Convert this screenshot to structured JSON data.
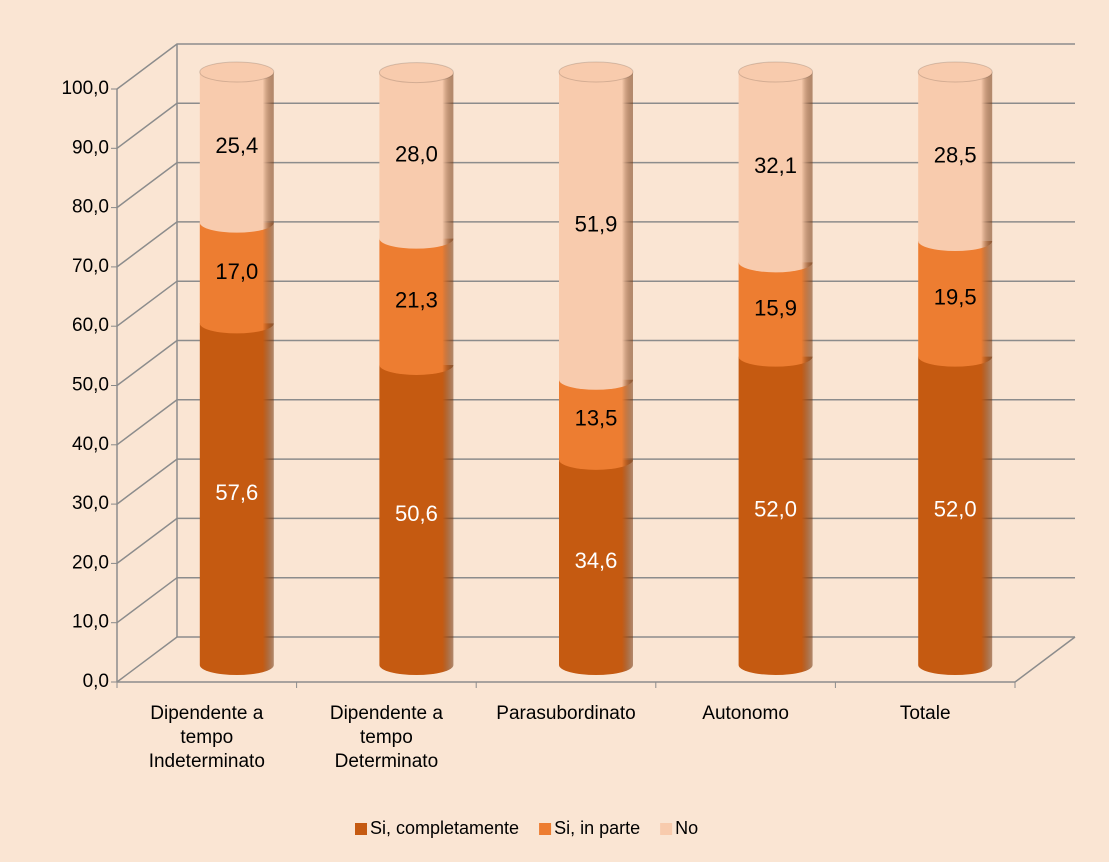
{
  "chart_data": {
    "type": "cylinder_stacked",
    "categories": [
      "Dipendente a tempo Indeterminato",
      "Dipendente a tempo Determinato",
      "Parasubordinato",
      "Autonomo",
      "Totale"
    ],
    "series": [
      {
        "name": "Si, completamente",
        "color": "#c55a11",
        "label_color": "#ffffff",
        "values": [
          57.6,
          50.6,
          34.6,
          52.0,
          52.0
        ],
        "value_labels": [
          "57,6",
          "50,6",
          "34,6",
          "52,0",
          "52,0"
        ]
      },
      {
        "name": "Si, in parte",
        "color": "#ed7d31",
        "label_color": "#000000",
        "values": [
          17.0,
          21.3,
          13.5,
          15.9,
          19.5
        ],
        "value_labels": [
          "17,0",
          "21,3",
          "13,5",
          "15,9",
          "19,5"
        ]
      },
      {
        "name": "No",
        "color": "#f8cbad",
        "label_color": "#000000",
        "values": [
          25.4,
          28.0,
          51.9,
          32.1,
          28.5
        ],
        "value_labels": [
          "25,4",
          "28,0",
          "51,9",
          "32,1",
          "28,5"
        ]
      }
    ],
    "ylim": [
      0,
      100
    ],
    "yticks": [
      {
        "value": 0,
        "label": "0,0"
      },
      {
        "value": 10,
        "label": "10,0"
      },
      {
        "value": 20,
        "label": "20,0"
      },
      {
        "value": 30,
        "label": "30,0"
      },
      {
        "value": 40,
        "label": "40,0"
      },
      {
        "value": 50,
        "label": "50,0"
      },
      {
        "value": 60,
        "label": "60,0"
      },
      {
        "value": 70,
        "label": "70,0"
      },
      {
        "value": 80,
        "label": "80,0"
      },
      {
        "value": 90,
        "label": "90,0"
      },
      {
        "value": 100,
        "label": "100,0"
      }
    ],
    "grid": true,
    "legend": "bottom"
  }
}
